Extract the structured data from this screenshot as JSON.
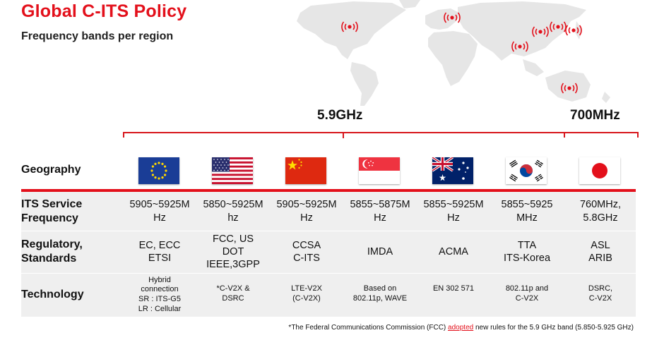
{
  "title": "Global C-ITS Policy",
  "subtitle": "Frequency bands per region",
  "bands": {
    "band_59": "5.9GHz",
    "band_700": "700MHz"
  },
  "row_labels": {
    "geography": "Geography",
    "frequency_1": "ITS Service",
    "frequency_2": "Frequency",
    "regulatory_1": "Regulatory,",
    "regulatory_2": "Standards",
    "technology": "Technology"
  },
  "regions": [
    {
      "flag": "eu-flag-icon",
      "frequency": [
        "5905~5925M",
        "Hz"
      ],
      "regulatory": [
        "EC, ECC",
        "ETSI"
      ],
      "technology": [
        "Hybrid",
        "connection",
        "SR : ITS-G5",
        "LR :  Cellular"
      ]
    },
    {
      "flag": "us-flag-icon",
      "frequency": [
        "5850~5925M",
        "hz"
      ],
      "regulatory": [
        "FCC, US",
        "DOT",
        "IEEE,3GPP"
      ],
      "technology": [
        "*C-V2X &",
        "DSRC"
      ]
    },
    {
      "flag": "china-flag-icon",
      "frequency": [
        "5905~5925M",
        "Hz"
      ],
      "regulatory": [
        "CCSA",
        "C-ITS"
      ],
      "technology": [
        "LTE-V2X",
        "(C-V2X)"
      ]
    },
    {
      "flag": "singapore-flag-icon",
      "frequency": [
        "5855~5875M",
        "Hz"
      ],
      "regulatory": [
        "IMDA"
      ],
      "technology": [
        "Based on",
        "802.11p, WAVE"
      ]
    },
    {
      "flag": "australia-flag-icon",
      "frequency": [
        "5855~5925M",
        "Hz"
      ],
      "regulatory": [
        "ACMA"
      ],
      "technology": [
        "EN 302 571"
      ]
    },
    {
      "flag": "korea-flag-icon",
      "frequency": [
        "5855~5925",
        "MHz"
      ],
      "regulatory": [
        "TTA",
        "ITS-Korea"
      ],
      "technology": [
        "802.11p and",
        "C-V2X"
      ]
    },
    {
      "flag": "japan-flag-icon",
      "frequency": [
        "760MHz,",
        "5.8GHz"
      ],
      "regulatory": [
        "ASL",
        "ARIB"
      ],
      "technology": [
        "DSRC,",
        "C-V2X"
      ]
    }
  ],
  "footnote": {
    "before": "*The Federal Communications Commission (FCC) ",
    "link": "adopted",
    "after": " new rules for the 5.9 GHz band (5.850-5.925 GHz)"
  },
  "colors": {
    "accent": "#e3101b",
    "row_background": "#efefef",
    "map": "#e6e6e6"
  }
}
